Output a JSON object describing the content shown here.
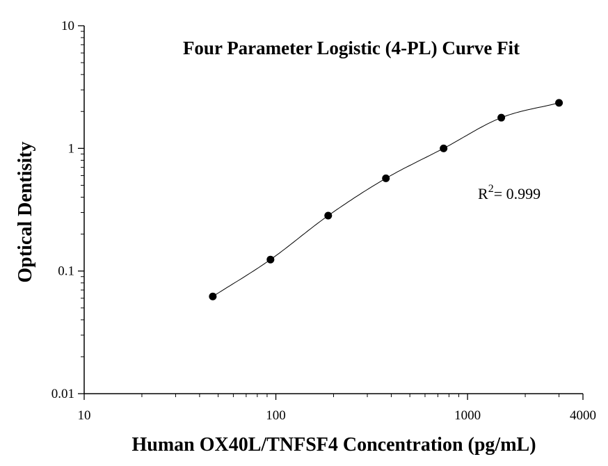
{
  "chart_data": {
    "type": "scatter",
    "title": "Four Parameter Logistic (4-PL) Curve Fit",
    "xlabel": "Human OX40L/TNFSF4 Concentration (pg/mL)",
    "ylabel": "Optical Dentisity",
    "x_scale": "log",
    "y_scale": "log",
    "xlim": [
      10,
      4000
    ],
    "ylim": [
      0.01,
      10
    ],
    "x_ticks": [
      "10",
      "100",
      "1000",
      "4000"
    ],
    "y_ticks": [
      "0.01",
      "0.1",
      "1",
      "10"
    ],
    "grid": false,
    "series": [
      {
        "points": [
          {
            "x": 46.875,
            "y": 0.062
          },
          {
            "x": 93.75,
            "y": 0.124
          },
          {
            "x": 187.5,
            "y": 0.283
          },
          {
            "x": 375,
            "y": 0.57
          },
          {
            "x": 750,
            "y": 1.0
          },
          {
            "x": 1500,
            "y": 1.78
          },
          {
            "x": 3000,
            "y": 2.35
          }
        ]
      }
    ],
    "fit": {
      "model": "4-PL",
      "annotation_prefix": "R",
      "annotation_sup": "2",
      "annotation_value": "= 0.999"
    }
  }
}
